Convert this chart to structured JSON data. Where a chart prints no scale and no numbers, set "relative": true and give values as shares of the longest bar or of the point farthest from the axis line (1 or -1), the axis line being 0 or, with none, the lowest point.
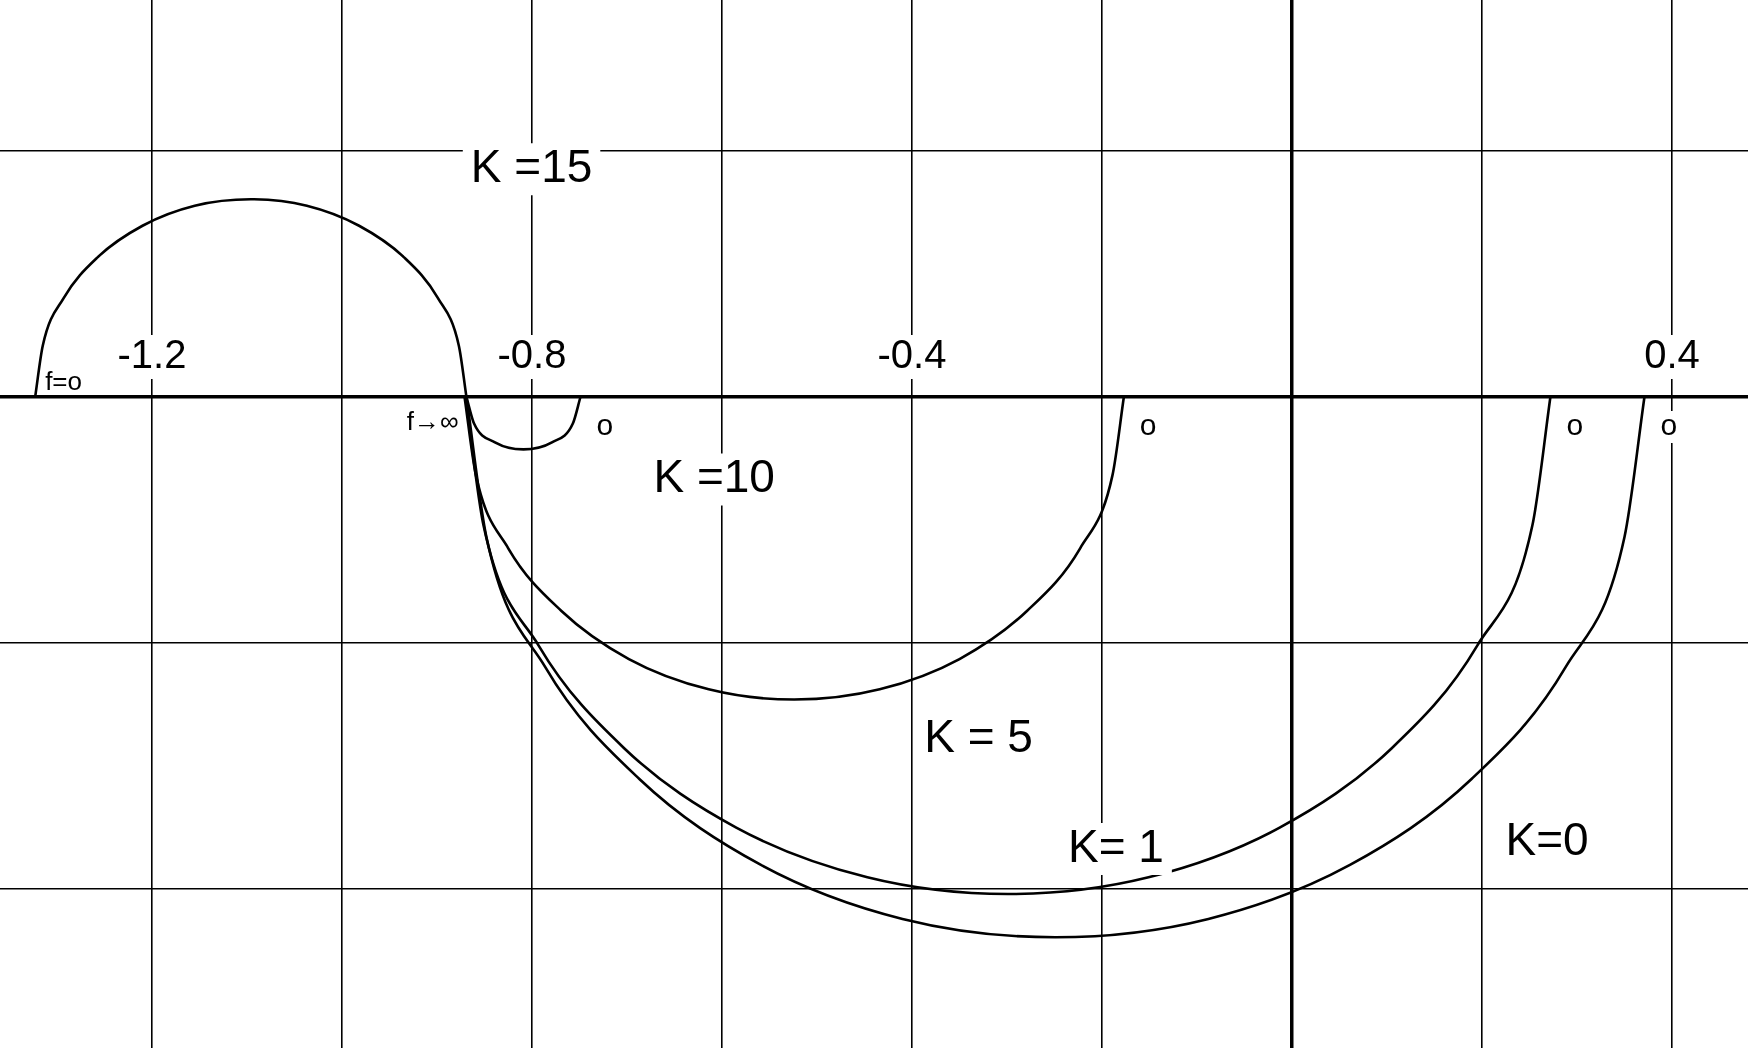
{
  "chart_data": {
    "type": "line",
    "relative": true,
    "grid": true,
    "legend": false,
    "marker": "none",
    "line_style": "solid",
    "xlim": [
      -1.36,
      0.48
    ],
    "xticks": [
      -1.2,
      {
        "value": -1.0,
        "label": null
      },
      -0.8,
      {
        "value": -0.6,
        "label": null
      },
      -0.4,
      {
        "value": -0.2,
        "label": null
      },
      {
        "value": 0,
        "label": null
      },
      {
        "value": 0.2,
        "label": null
      },
      0.4
    ],
    "series": [
      {
        "name": "K =15",
        "color": "#000000",
        "x": [
          -1.323,
          -1.315,
          -1.293,
          -1.257,
          -1.21,
          -1.155,
          -1.096,
          -1.037,
          -0.982,
          -0.935,
          -0.899,
          -0.877,
          -0.869
        ],
        "values": [
          0,
          0.095,
          0.183,
          0.259,
          0.317,
          0.354,
          0.366,
          0.354,
          0.317,
          0.259,
          0.183,
          0.095,
          0
        ]
      },
      {
        "name": "K =10",
        "color": "#000000",
        "x": [
          -0.869,
          -0.861,
          -0.839,
          -0.809,
          -0.779,
          -0.757,
          -0.749
        ],
        "values": [
          0,
          -0.049,
          -0.084,
          -0.097,
          -0.084,
          -0.049,
          0
        ]
      },
      {
        "name": "K = 5",
        "color": "#000000",
        "x": [
          -0.871,
          -0.859,
          -0.825,
          -0.769,
          -0.698,
          -0.614,
          -0.524,
          -0.434,
          -0.35,
          -0.279,
          -0.223,
          -0.189,
          -0.177
        ],
        "values": [
          0,
          -0.145,
          -0.28,
          -0.396,
          -0.485,
          -0.541,
          -0.56,
          -0.541,
          -0.485,
          -0.396,
          -0.28,
          -0.145,
          0
        ]
      },
      {
        "name": "K= 1",
        "color": "#000000",
        "x": [
          -0.87,
          -0.851,
          -0.793,
          -0.703,
          -0.585,
          -0.447,
          -0.299,
          -0.151,
          -0.013,
          0.105,
          0.195,
          0.253,
          0.272
        ],
        "values": [
          0,
          -0.238,
          -0.46,
          -0.65,
          -0.797,
          -0.889,
          -0.92,
          -0.889,
          -0.797,
          -0.65,
          -0.46,
          -0.238,
          0
        ]
      },
      {
        "name": "K=0",
        "color": "#000000",
        "x": [
          -0.869,
          -0.848,
          -0.786,
          -0.687,
          -0.559,
          -0.41,
          -0.249,
          -0.088,
          0.061,
          0.189,
          0.288,
          0.35,
          0.371
        ],
        "values": [
          0,
          -0.259,
          -0.5,
          -0.707,
          -0.866,
          -0.966,
          -1,
          -0.966,
          -0.866,
          -0.707,
          -0.5,
          -0.259,
          0
        ]
      }
    ],
    "annotations": [
      {
        "text": "f=o",
        "x": -1.323,
        "y": 0
      },
      {
        "text": "f→∞",
        "x": -0.869,
        "y": 0
      },
      {
        "text": "o",
        "x": -0.749,
        "y": 0
      },
      {
        "text": "o",
        "x": -0.177,
        "y": 0
      },
      {
        "text": "o",
        "x": 0.272,
        "y": 0
      },
      {
        "text": "o",
        "x": 0.371,
        "y": 0
      }
    ]
  }
}
